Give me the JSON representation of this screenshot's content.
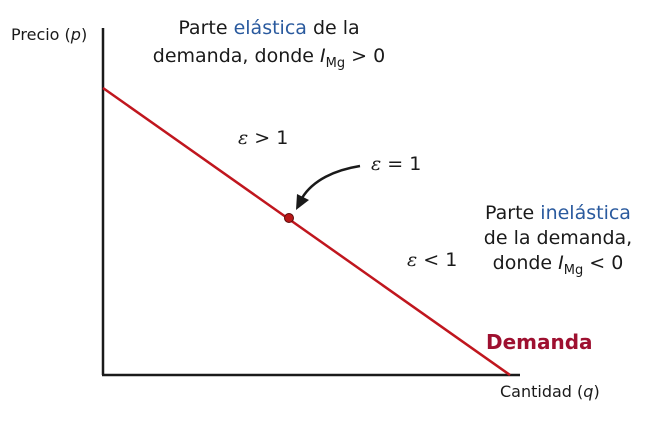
{
  "axes": {
    "y_label": {
      "pre": "Precio (",
      "var": "p",
      "post": ")"
    },
    "x_label": {
      "pre": "Cantidad (",
      "var": "q",
      "post": ")"
    }
  },
  "notes": {
    "elastic": {
      "line1_pre": "Parte ",
      "line1_highlight": "elástica",
      "line1_post": " de la",
      "line2_pre": "demanda, donde ",
      "var": "I",
      "sub": "Mg",
      "condition": " > 0"
    },
    "inelastic": {
      "line1_pre": "Parte ",
      "line1_highlight": "inelástica",
      "line2": "de la demanda,",
      "line3_pre": "donde ",
      "var": "I",
      "sub": "Mg",
      "condition": " < 0"
    }
  },
  "elasticity_labels": {
    "greater": {
      "symbol": "ε",
      "rest": " > 1"
    },
    "equal": {
      "symbol": "ε",
      "rest": " = 1"
    },
    "less": {
      "symbol": "ε",
      "rest": " < 1"
    }
  },
  "curve": {
    "label": "Demanda"
  },
  "colors": {
    "curve": "#c0161e",
    "curve_label": "#9e1030",
    "highlight": "#2a5a9e",
    "axis": "#1a1a1a",
    "point": "#b81818"
  }
}
